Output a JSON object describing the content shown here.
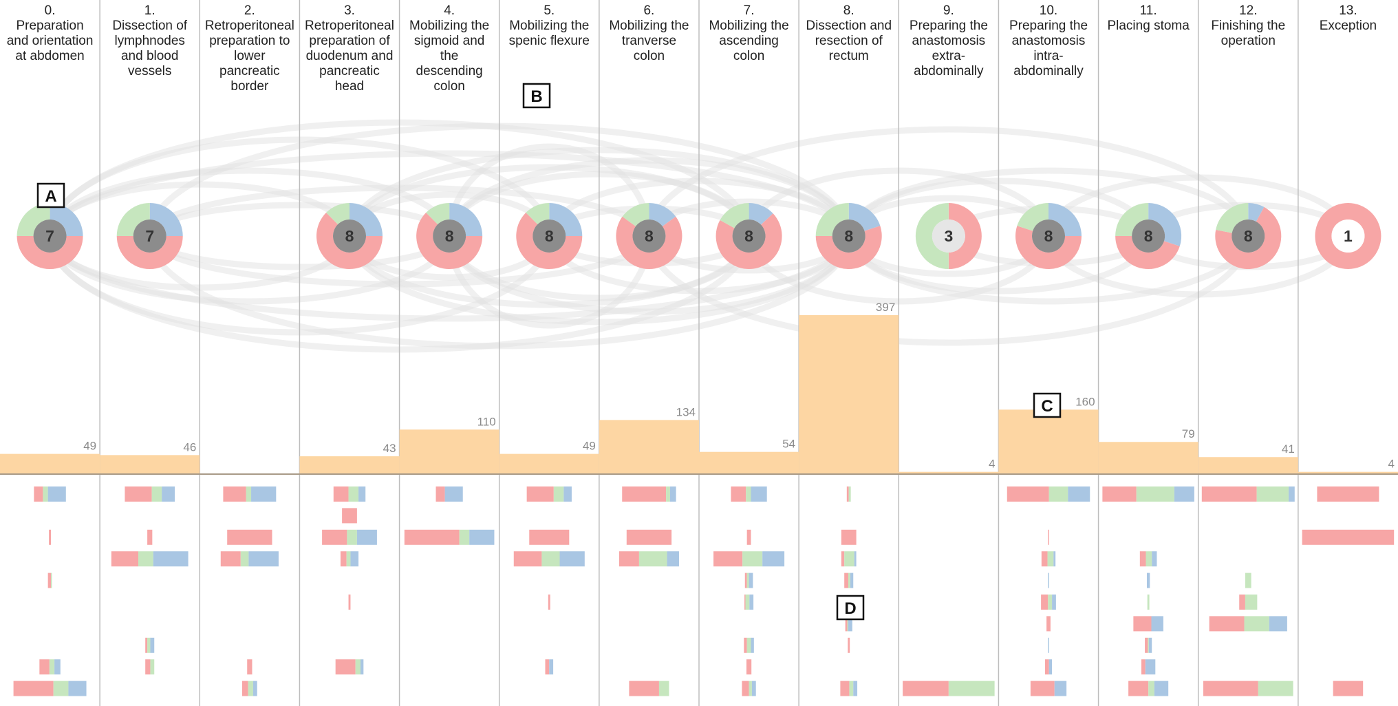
{
  "chart_data": {
    "type": "bar",
    "title": "",
    "xlabel": "",
    "ylabel": "",
    "ylim": [
      0,
      397
    ],
    "categories": [
      "0. Preparation and orientation at abdomen",
      "1. Dissection of lymphnodes and blood vessels",
      "2. Retroperitoneal preparation to lower pancreatic border",
      "3. Retroperitoneal preparation of duodenum and pancreatic head",
      "4. Mobilizing the sigmoid and the descending colon",
      "5. Mobilizing the spenic flexure",
      "6. Mobilizing the tranverse colon",
      "7. Mobilizing the ascending colon",
      "8. Dissection and resection of rectum",
      "9. Preparing the anastomosis extra-abdominally",
      "10. Preparing the anastomosis intra-abdominally",
      "11. Placing stoma",
      "12. Finishing the operation",
      "13. Exception"
    ],
    "phases": [
      {
        "index": "0.",
        "lines": [
          "Preparation",
          "and orientation",
          "at abdomen"
        ]
      },
      {
        "index": "1.",
        "lines": [
          "Dissection of",
          "lymphnodes",
          "and blood",
          "vessels"
        ]
      },
      {
        "index": "2.",
        "lines": [
          "Retroperitoneal",
          "preparation to",
          "lower",
          "pancreatic",
          "border"
        ]
      },
      {
        "index": "3.",
        "lines": [
          "Retroperitoneal",
          "preparation of",
          "duodenum and",
          "pancreatic",
          "head"
        ]
      },
      {
        "index": "4.",
        "lines": [
          "Mobilizing the",
          "sigmoid and",
          "the",
          "descending",
          "colon"
        ]
      },
      {
        "index": "5.",
        "lines": [
          "Mobilizing the",
          "spenic flexure"
        ]
      },
      {
        "index": "6.",
        "lines": [
          "Mobilizing the",
          "tranverse",
          "colon"
        ]
      },
      {
        "index": "7.",
        "lines": [
          "Mobilizing the",
          "ascending",
          "colon"
        ]
      },
      {
        "index": "8.",
        "lines": [
          "Dissection and",
          "resection of",
          "rectum"
        ]
      },
      {
        "index": "9.",
        "lines": [
          "Preparing the",
          "anastomosis",
          "extra-",
          "abdominally"
        ]
      },
      {
        "index": "10.",
        "lines": [
          "Preparing the",
          "anastomosis",
          "intra-",
          "abdominally"
        ]
      },
      {
        "index": "11.",
        "lines": [
          "Placing stoma"
        ]
      },
      {
        "index": "12.",
        "lines": [
          "Finishing the",
          "operation"
        ]
      },
      {
        "index": "13.",
        "lines": [
          "Exception"
        ]
      }
    ],
    "values": [
      49,
      46,
      null,
      43,
      110,
      49,
      134,
      54,
      397,
      4,
      160,
      79,
      41,
      4
    ],
    "value_labels": [
      "49",
      "46",
      "",
      "43",
      "110",
      "49",
      "134",
      "54",
      "397",
      "4",
      "160",
      "79",
      "41",
      "4"
    ],
    "donut_counts": [
      "7",
      "7",
      "",
      "8",
      "8",
      "8",
      "8",
      "8",
      "8",
      "3",
      "8",
      "8",
      "8",
      "1"
    ],
    "donut_shares": [
      [
        0.5,
        0.25,
        0.25
      ],
      [
        0.5,
        0.25,
        0.25
      ],
      null,
      [
        0.625,
        0.125,
        0.25
      ],
      [
        0.625,
        0.125,
        0.25
      ],
      [
        0.625,
        0.125,
        0.25
      ],
      [
        0.7,
        0.15,
        0.15
      ],
      [
        0.7,
        0.17,
        0.13
      ],
      [
        0.55,
        0.25,
        0.2
      ],
      [
        0.5,
        0.5,
        0.0
      ],
      [
        0.55,
        0.2,
        0.25
      ],
      [
        0.45,
        0.25,
        0.3
      ],
      [
        0.7,
        0.22,
        0.08
      ],
      [
        1.0,
        0.0,
        0.0
      ]
    ],
    "arcs": [
      [
        0,
        5,
        140
      ],
      [
        0,
        8,
        120
      ],
      [
        0,
        4,
        95
      ],
      [
        0,
        3,
        75
      ],
      [
        0,
        7,
        165
      ],
      [
        1,
        8,
        160
      ],
      [
        1,
        6,
        70
      ],
      [
        1,
        4,
        45
      ],
      [
        3,
        8,
        125
      ],
      [
        3,
        5,
        60
      ],
      [
        3,
        7,
        100
      ],
      [
        4,
        8,
        110
      ],
      [
        4,
        6,
        130
      ],
      [
        4,
        7,
        90
      ],
      [
        5,
        8,
        80
      ],
      [
        5,
        7,
        40
      ],
      [
        6,
        8,
        50
      ],
      [
        7,
        10,
        95
      ],
      [
        8,
        11,
        80
      ],
      [
        8,
        10,
        55
      ],
      [
        8,
        12,
        95
      ],
      [
        6,
        12,
        155
      ],
      [
        10,
        13,
        85
      ],
      [
        11,
        13,
        45
      ],
      [
        9,
        11,
        40
      ]
    ],
    "activity_rows": 10,
    "activity_bars": [
      [
        [
          0,
          0.09,
          0.05,
          0.18
        ],
        [
          2,
          0.02,
          0,
          0
        ],
        [
          4,
          0.03,
          0.01,
          0
        ],
        [
          8,
          0.1,
          0.05,
          0.06
        ],
        [
          9,
          0.4,
          0.15,
          0.18
        ]
      ],
      [
        [
          0,
          0.27,
          0.1,
          0.13
        ],
        [
          2,
          0.05,
          0,
          0
        ],
        [
          3,
          0.27,
          0.15,
          0.35
        ],
        [
          7,
          0.02,
          0.03,
          0.04
        ],
        [
          8,
          0.05,
          0.04,
          0
        ]
      ],
      [
        [
          0,
          0.23,
          0.05,
          0.25
        ],
        [
          2,
          0.45,
          0,
          0
        ],
        [
          3,
          0.2,
          0.08,
          0.3
        ],
        [
          8,
          0.05,
          0,
          0
        ],
        [
          9,
          0.06,
          0.05,
          0.04
        ]
      ],
      [
        [
          0,
          0.15,
          0.1,
          0.07
        ],
        [
          1,
          0.15,
          0,
          0
        ],
        [
          2,
          0.25,
          0.1,
          0.2
        ],
        [
          3,
          0.06,
          0.04,
          0.08
        ],
        [
          5,
          0.02,
          0,
          0
        ],
        [
          8,
          0.2,
          0.05,
          0.03
        ]
      ],
      [
        [
          0,
          0.09,
          0,
          0.18
        ],
        [
          2,
          0.55,
          0.1,
          0.25
        ]
      ],
      [
        [
          0,
          0.27,
          0.1,
          0.08
        ],
        [
          2,
          0.4,
          0,
          0
        ],
        [
          3,
          0.28,
          0.18,
          0.25
        ],
        [
          5,
          0.02,
          0,
          0
        ],
        [
          8,
          0.04,
          0,
          0.04
        ]
      ],
      [
        [
          0,
          0.44,
          0.04,
          0.06
        ],
        [
          2,
          0.45,
          0,
          0
        ],
        [
          3,
          0.2,
          0.28,
          0.12
        ],
        [
          9,
          0.3,
          0.1,
          0
        ]
      ],
      [
        [
          0,
          0.15,
          0.05,
          0.16
        ],
        [
          2,
          0.04,
          0,
          0
        ],
        [
          3,
          0.29,
          0.2,
          0.22
        ],
        [
          4,
          0.02,
          0.02,
          0.04
        ],
        [
          5,
          0.01,
          0.04,
          0.04
        ],
        [
          7,
          0.03,
          0.04,
          0.03
        ],
        [
          8,
          0.05,
          0,
          0
        ],
        [
          9,
          0.07,
          0.03,
          0.04
        ]
      ],
      [
        [
          0,
          0.02,
          0.02,
          0
        ],
        [
          2,
          0.15,
          0,
          0
        ],
        [
          3,
          0.03,
          0.1,
          0.02
        ],
        [
          4,
          0.04,
          0.02,
          0.03
        ],
        [
          6,
          0.02,
          0.01,
          0.04
        ],
        [
          7,
          0.02,
          0,
          0
        ],
        [
          9,
          0.09,
          0.04,
          0.04
        ]
      ],
      [
        [
          9,
          0.46,
          0.46,
          0
        ]
      ],
      [
        [
          0,
          0.42,
          0.19,
          0.22
        ],
        [
          2,
          0.01,
          0,
          0
        ],
        [
          3,
          0.06,
          0.06,
          0.02
        ],
        [
          4,
          0,
          0,
          0.01
        ],
        [
          5,
          0.07,
          0.04,
          0.04
        ],
        [
          6,
          0.04,
          0,
          0
        ],
        [
          7,
          0,
          0,
          0.01
        ],
        [
          8,
          0.04,
          0,
          0.03
        ],
        [
          9,
          0.24,
          0,
          0.12
        ]
      ],
      [
        [
          0,
          0.34,
          0.38,
          0.2
        ],
        [
          3,
          0.06,
          0.06,
          0.05
        ],
        [
          4,
          0,
          0,
          0.03
        ],
        [
          5,
          0,
          0.02,
          0
        ],
        [
          6,
          0.18,
          0,
          0.12
        ],
        [
          7,
          0.03,
          0.01,
          0.03
        ],
        [
          8,
          0.04,
          0,
          0.1
        ],
        [
          9,
          0.2,
          0.06,
          0.14
        ]
      ],
      [
        [
          0,
          0.55,
          0.32,
          0.06
        ],
        [
          4,
          0,
          0.06,
          0
        ],
        [
          5,
          0.06,
          0.12,
          0
        ],
        [
          6,
          0.35,
          0.25,
          0.18
        ],
        [
          9,
          0.55,
          0.35,
          0
        ]
      ],
      [
        [
          0,
          0.62,
          0,
          0
        ],
        [
          2,
          0.92,
          0,
          0
        ],
        [
          9,
          0.3,
          0,
          0
        ]
      ]
    ],
    "markers": [
      {
        "text": "A"
      },
      {
        "text": "B"
      },
      {
        "text": "C"
      },
      {
        "text": "D"
      }
    ],
    "colors": {
      "red": "#f7a6a6",
      "green": "#c6e6be",
      "blue": "#a9c6e3",
      "bar": "#fdd6a3",
      "arc": "#e2e2e2",
      "separator": "#bdbdbd",
      "axis": "#a89a87",
      "center": "#8c8c8c",
      "center_light": "#e6e6e6",
      "label": "#8a8a8a"
    },
    "legend": []
  }
}
